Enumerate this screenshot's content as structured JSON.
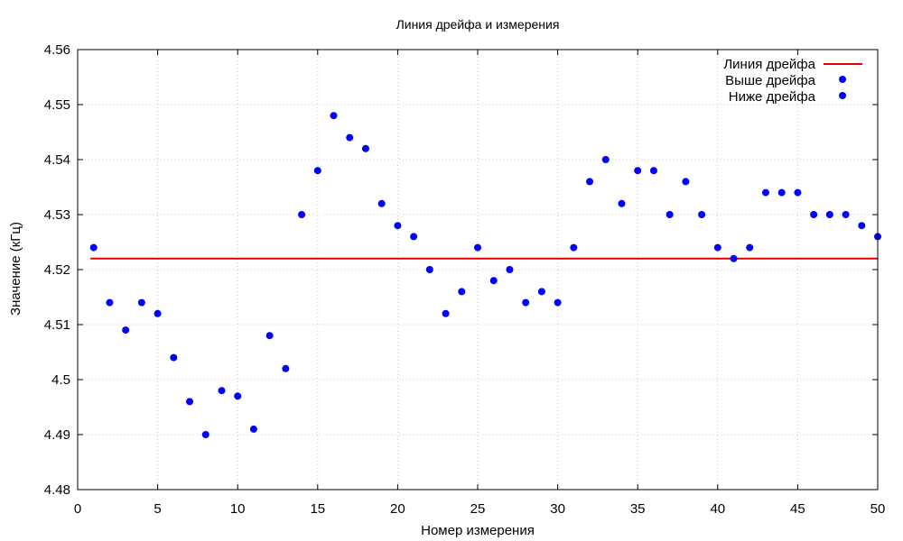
{
  "chart_data": {
    "type": "scatter",
    "title": "Линия дрейфа и измерения",
    "xlabel": "Номер измерения",
    "ylabel": "Значение (кГц)",
    "xlim": [
      0,
      50
    ],
    "ylim": [
      4.48,
      4.56
    ],
    "xticks": [
      0,
      5,
      10,
      15,
      20,
      25,
      30,
      35,
      40,
      45,
      50
    ],
    "yticks": [
      4.48,
      4.49,
      4.5,
      4.51,
      4.52,
      4.53,
      4.54,
      4.55,
      4.56
    ],
    "ytick_labels": [
      "4.48",
      "4.49",
      "4.5",
      "4.51",
      "4.52",
      "4.53",
      "4.54",
      "4.55",
      "4.56"
    ],
    "grid": true,
    "legend_position": "top-right",
    "drift_line": {
      "name": "Линия дрейфа",
      "color": "#e00000",
      "x": [
        0.8,
        50
      ],
      "y": [
        4.522,
        4.522
      ]
    },
    "above": {
      "name": "Выше дрейфа",
      "color": "#0000ff",
      "x": [
        1,
        14,
        15,
        16,
        17,
        18,
        19,
        20,
        21,
        25,
        31,
        32,
        33,
        34,
        35,
        36,
        37,
        38,
        39,
        40,
        42,
        43,
        44,
        45,
        46,
        47,
        48,
        49,
        50
      ],
      "y": [
        4.524,
        4.53,
        4.538,
        4.548,
        4.544,
        4.542,
        4.532,
        4.528,
        4.526,
        4.524,
        4.524,
        4.536,
        4.54,
        4.532,
        4.538,
        4.538,
        4.53,
        4.536,
        4.53,
        4.524,
        4.524,
        4.534,
        4.534,
        4.534,
        4.53,
        4.53,
        4.53,
        4.528,
        4.526
      ]
    },
    "below": {
      "name": "Ниже дрейфа",
      "color": "#0000ff",
      "x": [
        2,
        3,
        4,
        5,
        6,
        7,
        8,
        9,
        10,
        11,
        12,
        13,
        22,
        23,
        24,
        26,
        27,
        28,
        29,
        30,
        41
      ],
      "y": [
        4.514,
        4.509,
        4.514,
        4.512,
        4.504,
        4.496,
        4.49,
        4.498,
        4.497,
        4.491,
        4.508,
        4.502,
        4.52,
        4.512,
        4.516,
        4.518,
        4.52,
        4.514,
        4.516,
        4.514,
        4.522
      ]
    }
  }
}
